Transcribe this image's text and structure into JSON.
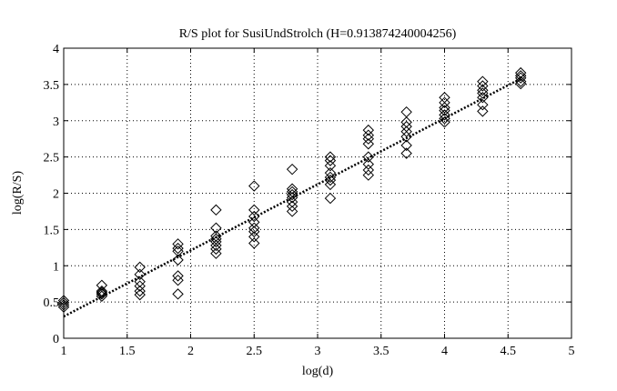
{
  "chart_data": {
    "type": "scatter",
    "title": "R/S plot for SusiUndStrolch (H=0.913874240004256)",
    "xlabel": "log(d)",
    "ylabel": "log(R/S)",
    "xlim": [
      1,
      5
    ],
    "ylim": [
      0,
      4
    ],
    "xticks": [
      "1",
      "1.5",
      "2",
      "2.5",
      "3",
      "3.5",
      "4",
      "4.5",
      "5"
    ],
    "yticks": [
      "0",
      "0.5",
      "1",
      "1.5",
      "2",
      "2.5",
      "3",
      "3.5",
      "4"
    ],
    "grid": true,
    "marker": "diamond",
    "points": [
      {
        "x": 1.0,
        "y": 0.43
      },
      {
        "x": 1.0,
        "y": 0.46
      },
      {
        "x": 1.0,
        "y": 0.49
      },
      {
        "x": 1.0,
        "y": 0.52
      },
      {
        "x": 1.3,
        "y": 0.58
      },
      {
        "x": 1.3,
        "y": 0.61
      },
      {
        "x": 1.3,
        "y": 0.63
      },
      {
        "x": 1.3,
        "y": 0.65
      },
      {
        "x": 1.3,
        "y": 0.73
      },
      {
        "x": 1.6,
        "y": 0.6
      },
      {
        "x": 1.6,
        "y": 0.65
      },
      {
        "x": 1.6,
        "y": 0.72
      },
      {
        "x": 1.6,
        "y": 0.78
      },
      {
        "x": 1.6,
        "y": 0.88
      },
      {
        "x": 1.6,
        "y": 0.98
      },
      {
        "x": 1.9,
        "y": 0.61
      },
      {
        "x": 1.9,
        "y": 0.8
      },
      {
        "x": 1.9,
        "y": 0.86
      },
      {
        "x": 1.9,
        "y": 1.08
      },
      {
        "x": 1.9,
        "y": 1.2
      },
      {
        "x": 1.9,
        "y": 1.24
      },
      {
        "x": 1.9,
        "y": 1.3
      },
      {
        "x": 2.2,
        "y": 1.17
      },
      {
        "x": 2.2,
        "y": 1.23
      },
      {
        "x": 2.2,
        "y": 1.28
      },
      {
        "x": 2.2,
        "y": 1.33
      },
      {
        "x": 2.2,
        "y": 1.37
      },
      {
        "x": 2.2,
        "y": 1.41
      },
      {
        "x": 2.2,
        "y": 1.52
      },
      {
        "x": 2.2,
        "y": 1.77
      },
      {
        "x": 2.5,
        "y": 1.31
      },
      {
        "x": 2.5,
        "y": 1.4
      },
      {
        "x": 2.5,
        "y": 1.47
      },
      {
        "x": 2.5,
        "y": 1.52
      },
      {
        "x": 2.5,
        "y": 1.6
      },
      {
        "x": 2.5,
        "y": 1.68
      },
      {
        "x": 2.5,
        "y": 1.77
      },
      {
        "x": 2.5,
        "y": 2.1
      },
      {
        "x": 2.8,
        "y": 1.75
      },
      {
        "x": 2.8,
        "y": 1.82
      },
      {
        "x": 2.8,
        "y": 1.88
      },
      {
        "x": 2.8,
        "y": 1.94
      },
      {
        "x": 2.8,
        "y": 1.98
      },
      {
        "x": 2.8,
        "y": 2.02
      },
      {
        "x": 2.8,
        "y": 2.06
      },
      {
        "x": 2.8,
        "y": 2.33
      },
      {
        "x": 3.1,
        "y": 1.93
      },
      {
        "x": 3.1,
        "y": 2.12
      },
      {
        "x": 3.1,
        "y": 2.18
      },
      {
        "x": 3.1,
        "y": 2.22
      },
      {
        "x": 3.1,
        "y": 2.28
      },
      {
        "x": 3.1,
        "y": 2.38
      },
      {
        "x": 3.1,
        "y": 2.45
      },
      {
        "x": 3.1,
        "y": 2.5
      },
      {
        "x": 3.4,
        "y": 2.25
      },
      {
        "x": 3.4,
        "y": 2.32
      },
      {
        "x": 3.4,
        "y": 2.4
      },
      {
        "x": 3.4,
        "y": 2.5
      },
      {
        "x": 3.4,
        "y": 2.68
      },
      {
        "x": 3.4,
        "y": 2.75
      },
      {
        "x": 3.4,
        "y": 2.8
      },
      {
        "x": 3.4,
        "y": 2.87
      },
      {
        "x": 3.7,
        "y": 2.55
      },
      {
        "x": 3.7,
        "y": 2.66
      },
      {
        "x": 3.7,
        "y": 2.78
      },
      {
        "x": 3.7,
        "y": 2.85
      },
      {
        "x": 3.7,
        "y": 2.92
      },
      {
        "x": 3.7,
        "y": 2.98
      },
      {
        "x": 3.7,
        "y": 3.12
      },
      {
        "x": 4.0,
        "y": 2.98
      },
      {
        "x": 4.0,
        "y": 3.03
      },
      {
        "x": 4.0,
        "y": 3.08
      },
      {
        "x": 4.0,
        "y": 3.14
      },
      {
        "x": 4.0,
        "y": 3.18
      },
      {
        "x": 4.0,
        "y": 3.25
      },
      {
        "x": 4.0,
        "y": 3.32
      },
      {
        "x": 4.3,
        "y": 3.13
      },
      {
        "x": 4.3,
        "y": 3.22
      },
      {
        "x": 4.3,
        "y": 3.32
      },
      {
        "x": 4.3,
        "y": 3.38
      },
      {
        "x": 4.3,
        "y": 3.42
      },
      {
        "x": 4.3,
        "y": 3.48
      },
      {
        "x": 4.3,
        "y": 3.54
      },
      {
        "x": 4.6,
        "y": 3.51
      },
      {
        "x": 4.6,
        "y": 3.54
      },
      {
        "x": 4.6,
        "y": 3.59
      },
      {
        "x": 4.6,
        "y": 3.62
      },
      {
        "x": 4.6,
        "y": 3.66
      }
    ],
    "fit_line": {
      "x": [
        1.0,
        4.6
      ],
      "y": [
        0.3,
        3.58
      ],
      "style": "dotted"
    }
  }
}
